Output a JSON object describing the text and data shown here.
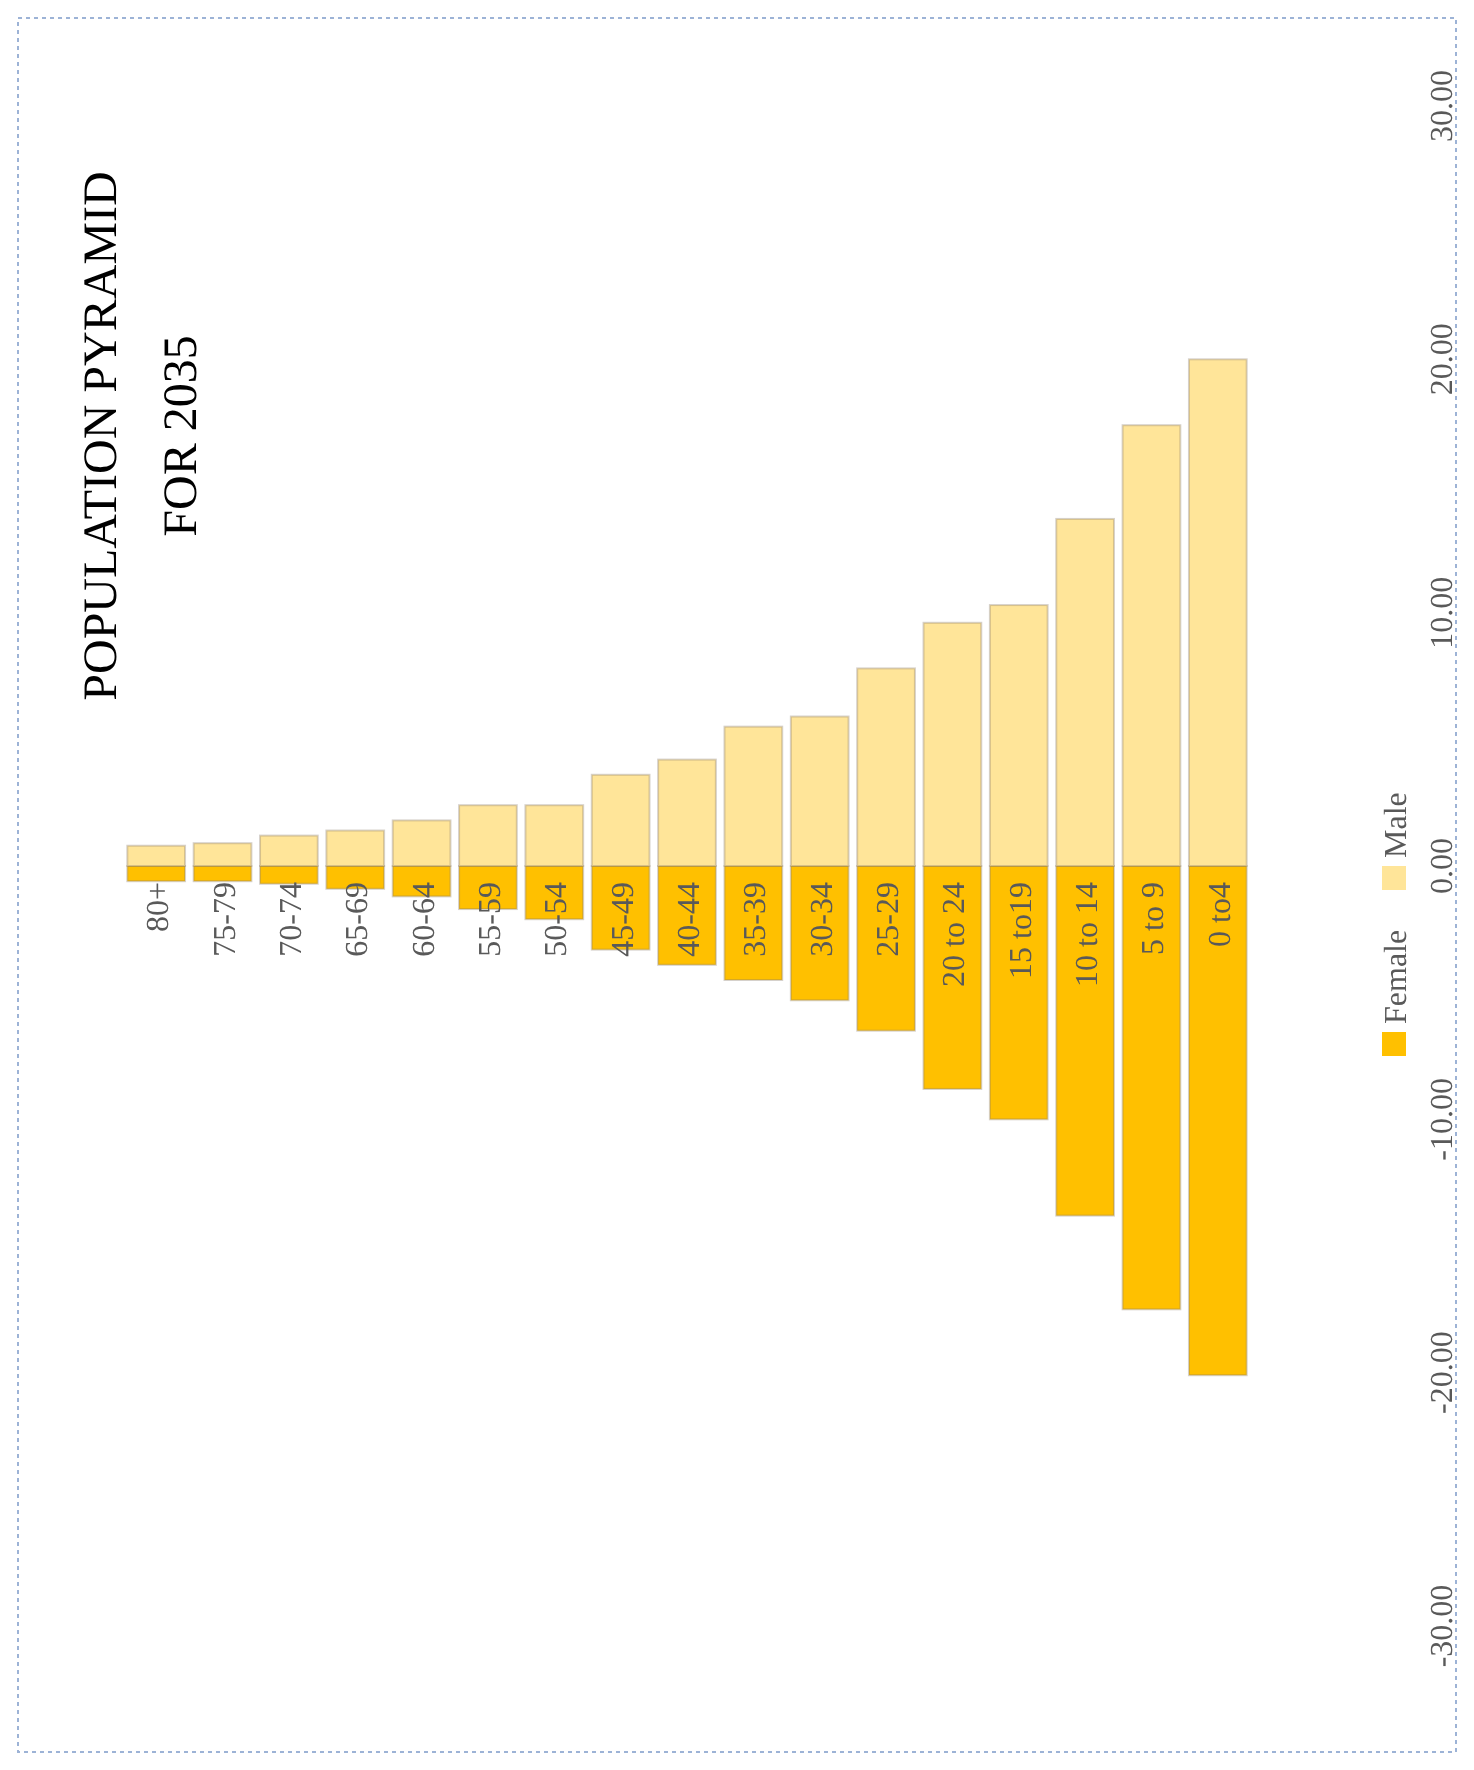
{
  "chart_data": {
    "type": "bar",
    "title": "POPULATION PYRAMID\nFOR 2035",
    "stacked": true,
    "legend": "right",
    "grid": false,
    "categories": [
      "80+",
      "75-79",
      "70-74",
      "65-69",
      "60-64",
      "55-59",
      "50-54",
      "45-49",
      "40-44",
      "35-39",
      "30-34",
      "25-29",
      "20 to 24",
      "15 to19",
      "10 to 14",
      "5 to 9",
      "0 to4"
    ],
    "series": [
      {
        "name": "Female",
        "color": "#ffc000",
        "values": [
          -0.6,
          -0.6,
          -0.7,
          -0.9,
          -1.2,
          -1.7,
          -2.1,
          -3.3,
          -3.9,
          -4.5,
          -5.3,
          -6.5,
          -8.8,
          -10.0,
          -13.8,
          -17.5,
          -20.1
        ]
      },
      {
        "name": "Male",
        "color": "#ffe599",
        "values": [
          0.8,
          0.9,
          1.2,
          1.4,
          1.8,
          2.4,
          2.4,
          3.6,
          4.2,
          5.5,
          5.9,
          7.8,
          9.6,
          10.3,
          13.7,
          17.4,
          20.0
        ]
      }
    ],
    "ylim": [
      -30,
      30
    ],
    "yticks": [
      {
        "value": -30,
        "label": "-30.00"
      },
      {
        "value": -20,
        "label": "-20.00"
      },
      {
        "value": -10,
        "label": "-10.00"
      },
      {
        "value": 0,
        "label": "0.00"
      },
      {
        "value": 10,
        "label": "10.00"
      },
      {
        "value": 20,
        "label": "20.00"
      },
      {
        "value": 30,
        "label": "30.00"
      }
    ]
  }
}
